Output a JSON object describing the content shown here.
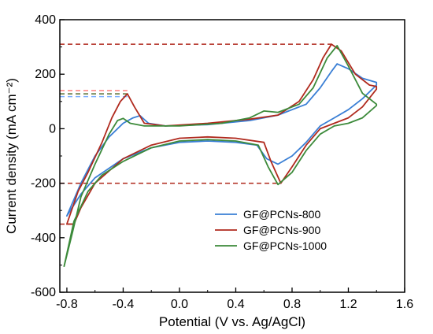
{
  "chart_data": {
    "type": "line",
    "title": "",
    "xlabel": "Potential (V vs. Ag/AgCl)",
    "ylabel": "Current density (mA cm⁻²)",
    "xlim": [
      -0.85,
      1.6
    ],
    "ylim": [
      -600,
      400
    ],
    "xticks": [
      -0.8,
      -0.4,
      0.0,
      0.4,
      0.8,
      1.2,
      1.6
    ],
    "xtick_labels": [
      "-0.8",
      "-0.4",
      "0.0",
      "0.4",
      "0.8",
      "1.2",
      "1.6"
    ],
    "yticks": [
      -600,
      -400,
      -200,
      0,
      200,
      400
    ],
    "ytick_labels": [
      "-600",
      "-400",
      "-200",
      "0",
      "200",
      "400"
    ],
    "grid": false,
    "legend_position": "bottom-right",
    "series": [
      {
        "name": "GF@PCNs-800",
        "color": "#3a7fd5",
        "points": [
          [
            -0.8,
            -320
          ],
          [
            -0.7,
            -200
          ],
          [
            -0.6,
            -100
          ],
          [
            -0.5,
            -30
          ],
          [
            -0.4,
            20
          ],
          [
            -0.33,
            40
          ],
          [
            -0.28,
            48
          ],
          [
            -0.22,
            20
          ],
          [
            -0.1,
            10
          ],
          [
            0.2,
            15
          ],
          [
            0.5,
            30
          ],
          [
            0.7,
            50
          ],
          [
            0.9,
            90
          ],
          [
            1.0,
            150
          ],
          [
            1.08,
            210
          ],
          [
            1.12,
            238
          ],
          [
            1.2,
            220
          ],
          [
            1.3,
            185
          ],
          [
            1.4,
            170
          ],
          [
            1.4,
            160
          ],
          [
            1.3,
            110
          ],
          [
            1.2,
            70
          ],
          [
            1.1,
            40
          ],
          [
            1.0,
            10
          ],
          [
            0.9,
            -50
          ],
          [
            0.8,
            -100
          ],
          [
            0.7,
            -130
          ],
          [
            0.62,
            -110
          ],
          [
            0.55,
            -60
          ],
          [
            0.4,
            -50
          ],
          [
            0.2,
            -45
          ],
          [
            0.0,
            -50
          ],
          [
            -0.2,
            -70
          ],
          [
            -0.4,
            -110
          ],
          [
            -0.6,
            -180
          ],
          [
            -0.7,
            -240
          ],
          [
            -0.8,
            -320
          ]
        ]
      },
      {
        "name": "GF@PCNs-900",
        "color": "#b02a1e",
        "points": [
          [
            -0.8,
            -350
          ],
          [
            -0.72,
            -230
          ],
          [
            -0.65,
            -160
          ],
          [
            -0.55,
            -50
          ],
          [
            -0.48,
            40
          ],
          [
            -0.42,
            100
          ],
          [
            -0.37,
            128
          ],
          [
            -0.32,
            80
          ],
          [
            -0.25,
            20
          ],
          [
            -0.1,
            10
          ],
          [
            0.2,
            20
          ],
          [
            0.5,
            35
          ],
          [
            0.7,
            50
          ],
          [
            0.85,
            100
          ],
          [
            0.95,
            180
          ],
          [
            1.02,
            260
          ],
          [
            1.08,
            310
          ],
          [
            1.15,
            285
          ],
          [
            1.25,
            200
          ],
          [
            1.35,
            160
          ],
          [
            1.4,
            155
          ],
          [
            1.4,
            145
          ],
          [
            1.3,
            80
          ],
          [
            1.2,
            40
          ],
          [
            1.1,
            20
          ],
          [
            1.0,
            0
          ],
          [
            0.9,
            -60
          ],
          [
            0.8,
            -140
          ],
          [
            0.72,
            -200
          ],
          [
            0.65,
            -120
          ],
          [
            0.6,
            -50
          ],
          [
            0.4,
            -35
          ],
          [
            0.2,
            -30
          ],
          [
            0.0,
            -35
          ],
          [
            -0.2,
            -60
          ],
          [
            -0.4,
            -110
          ],
          [
            -0.6,
            -200
          ],
          [
            -0.7,
            -290
          ],
          [
            -0.75,
            -350
          ],
          [
            -0.8,
            -350
          ]
        ]
      },
      {
        "name": "GF@PCNs-1000",
        "color": "#3c8a3a",
        "points": [
          [
            -0.82,
            -505
          ],
          [
            -0.76,
            -380
          ],
          [
            -0.7,
            -250
          ],
          [
            -0.6,
            -130
          ],
          [
            -0.5,
            -20
          ],
          [
            -0.44,
            30
          ],
          [
            -0.4,
            38
          ],
          [
            -0.35,
            20
          ],
          [
            -0.25,
            10
          ],
          [
            0.0,
            10
          ],
          [
            0.3,
            20
          ],
          [
            0.5,
            40
          ],
          [
            0.6,
            65
          ],
          [
            0.7,
            60
          ],
          [
            0.85,
            90
          ],
          [
            0.95,
            150
          ],
          [
            1.05,
            260
          ],
          [
            1.12,
            305
          ],
          [
            1.2,
            230
          ],
          [
            1.3,
            130
          ],
          [
            1.4,
            90
          ],
          [
            1.4,
            85
          ],
          [
            1.3,
            40
          ],
          [
            1.2,
            20
          ],
          [
            1.1,
            10
          ],
          [
            1.0,
            -20
          ],
          [
            0.9,
            -80
          ],
          [
            0.8,
            -160
          ],
          [
            0.7,
            -205
          ],
          [
            0.63,
            -140
          ],
          [
            0.56,
            -60
          ],
          [
            0.4,
            -45
          ],
          [
            0.2,
            -40
          ],
          [
            0.0,
            -45
          ],
          [
            -0.2,
            -70
          ],
          [
            -0.4,
            -120
          ],
          [
            -0.55,
            -170
          ],
          [
            -0.65,
            -230
          ],
          [
            -0.75,
            -340
          ],
          [
            -0.82,
            -505
          ]
        ]
      }
    ],
    "reference_lines": [
      {
        "color": "#b02a1e",
        "style": "dashed",
        "from": [
          -0.85,
          310
        ],
        "to": [
          1.08,
          310
        ]
      },
      {
        "color": "#b02a1e",
        "style": "dashed",
        "from": [
          -0.85,
          -200
        ],
        "to": [
          0.72,
          -200
        ]
      },
      {
        "color": "#556b2f",
        "style": "dashed",
        "from": [
          -0.85,
          128
        ],
        "to": [
          -0.37,
          128
        ]
      },
      {
        "color": "#ff7f7f",
        "style": "dashed",
        "from": [
          -0.85,
          140
        ],
        "to": [
          -0.37,
          140
        ]
      },
      {
        "color": "#7fb0ff",
        "style": "dashed",
        "from": [
          -0.85,
          118
        ],
        "to": [
          -0.37,
          118
        ]
      },
      {
        "color": "#b02a1e",
        "style": "dashed",
        "from": [
          -0.85,
          -350
        ],
        "to": [
          -0.75,
          -350
        ]
      }
    ]
  }
}
